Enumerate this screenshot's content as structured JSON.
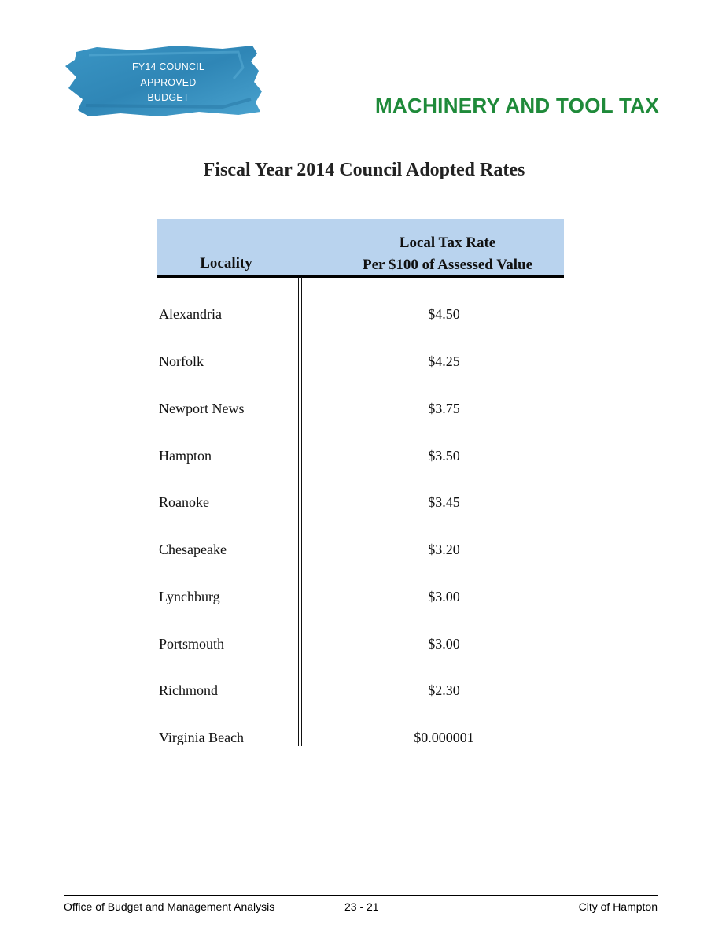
{
  "badge": {
    "lines": [
      "FY14 COUNCIL",
      "APPROVED",
      "BUDGET"
    ],
    "color": "#2f86b6"
  },
  "section_title": "MACHINERY AND TOOL TAX",
  "table_title": "Fiscal Year 2014 Council Adopted Rates",
  "table": {
    "headers": {
      "locality": "Locality",
      "rate_line1": "Local Tax Rate",
      "rate_line2": "Per $100 of Assessed Value"
    },
    "header_color": "#b9d3ee",
    "rows": [
      {
        "locality": "Alexandria",
        "rate": "$4.50"
      },
      {
        "locality": "Norfolk",
        "rate": "$4.25"
      },
      {
        "locality": "Newport News",
        "rate": "$3.75"
      },
      {
        "locality": "Hampton",
        "rate": "$3.50"
      },
      {
        "locality": "Roanoke",
        "rate": "$3.45"
      },
      {
        "locality": "Chesapeake",
        "rate": "$3.20"
      },
      {
        "locality": "Lynchburg",
        "rate": "$3.00"
      },
      {
        "locality": "Portsmouth",
        "rate": "$3.00"
      },
      {
        "locality": "Richmond",
        "rate": "$2.30"
      },
      {
        "locality": "Virginia Beach",
        "rate": "$0.000001"
      }
    ]
  },
  "footer": {
    "left": "Office of Budget and Management Analysis",
    "center": "23 - 21",
    "right": "City of Hampton"
  },
  "colors": {
    "title_green": "#1f8a3a"
  }
}
